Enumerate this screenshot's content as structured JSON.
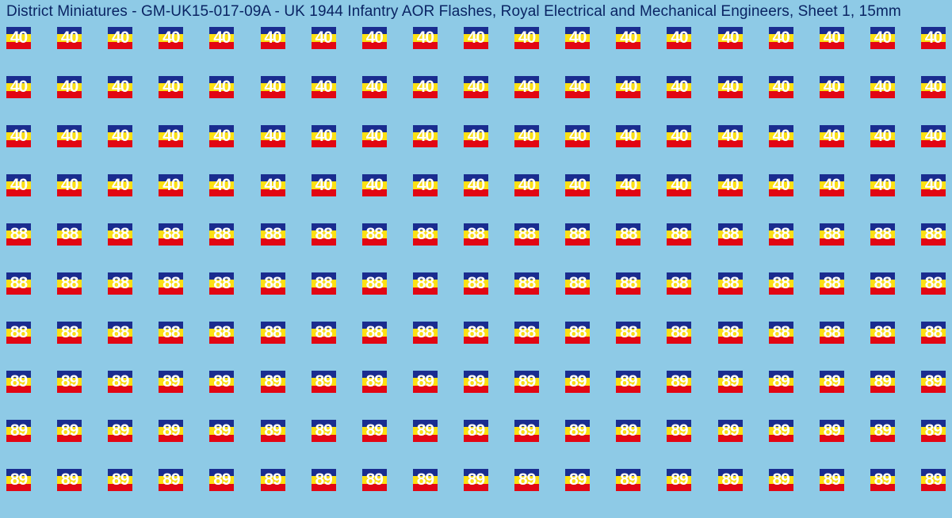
{
  "title": "District Miniatures - GM-UK15-017-09A - UK 1944 Infantry AOR Flashes, Royal Electrical and Mechanical Engineers, Sheet 1, 15mm",
  "sheet": {
    "background_color": "#8ecae6",
    "title_color": "#0a2463",
    "title_fontsize": 19,
    "columns": 19,
    "flash_width": 31,
    "flash_height": 28,
    "row_gap": 34,
    "stripe_colors": {
      "top": "#1a2c8f",
      "middle": "#fde012",
      "bottom": "#e20613"
    },
    "number_color": "#ffffff",
    "number_fontsize": 21,
    "number_fontweight": 700,
    "rows": [
      {
        "number": "40",
        "count": 19
      },
      {
        "number": "40",
        "count": 19
      },
      {
        "number": "40",
        "count": 19
      },
      {
        "number": "40",
        "count": 19
      },
      {
        "number": "88",
        "count": 19
      },
      {
        "number": "88",
        "count": 19
      },
      {
        "number": "88",
        "count": 19
      },
      {
        "number": "89",
        "count": 19
      },
      {
        "number": "89",
        "count": 19
      },
      {
        "number": "89",
        "count": 19
      }
    ]
  }
}
